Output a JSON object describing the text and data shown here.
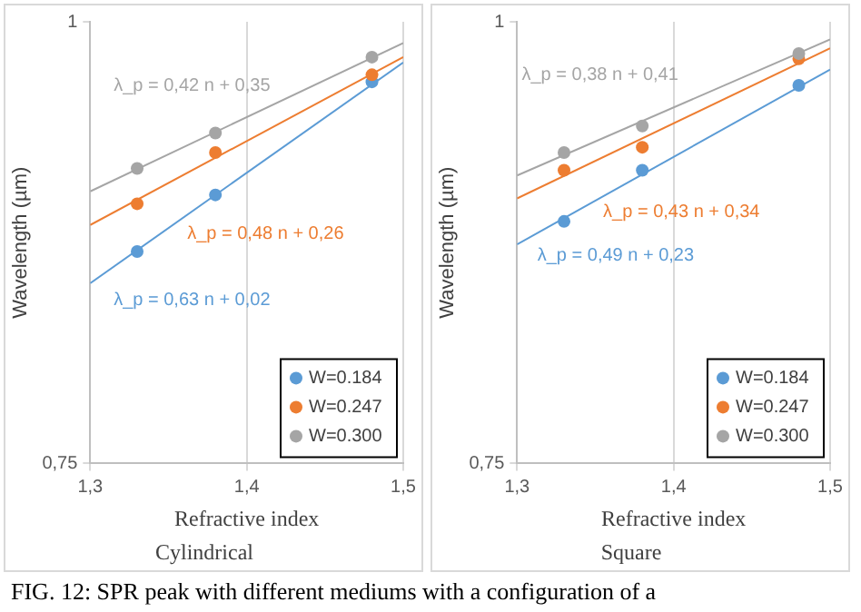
{
  "chart_data": [
    {
      "type": "scatter",
      "title": "Cylindrical",
      "xlabel": "Refractive index",
      "ylabel": "Wavelength (µm)",
      "xlim": [
        1.3,
        1.5
      ],
      "ylim": [
        0.75,
        1
      ],
      "xticks": [
        {
          "value": 1.3,
          "label": "1,3"
        },
        {
          "value": 1.4,
          "label": "1,4"
        },
        {
          "value": 1.5,
          "label": "1,5"
        }
      ],
      "yticks": [
        {
          "value": 0.75,
          "label": "0,75"
        },
        1
      ],
      "grid": "x",
      "legend": "bottom right",
      "marker": "circle",
      "series": [
        {
          "name": "W=0.184",
          "color": "#5b9bd5",
          "x": [
            1.33,
            1.38,
            1.48
          ],
          "values": [
            0.87,
            0.902,
            0.966
          ]
        },
        {
          "name": "W=0.247",
          "color": "#ed7d31",
          "x": [
            1.33,
            1.38,
            1.48
          ],
          "values": [
            0.897,
            0.926,
            0.97
          ]
        },
        {
          "name": "W=0.300",
          "color": "#a5a5a5",
          "x": [
            1.33,
            1.38,
            1.48
          ],
          "values": [
            0.917,
            0.937,
            0.98
          ]
        },
        {
          "type": "line",
          "color": "#5b9bd5",
          "marker": "none",
          "x": [
            1.3,
            1.5
          ],
          "values": [
            0.852,
            0.977
          ]
        },
        {
          "type": "line",
          "color": "#ed7d31",
          "marker": "none",
          "x": [
            1.3,
            1.5
          ],
          "values": [
            0.885,
            0.98
          ]
        },
        {
          "type": "line",
          "color": "#a5a5a5",
          "marker": "none",
          "x": [
            1.3,
            1.5
          ],
          "values": [
            0.904,
            0.988
          ]
        }
      ],
      "annotations": [
        "λ_p = 0,63 n + 0,02",
        "λ_p = 0,48 n + 0,26",
        "λ_p = 0,42 n + 0,35",
        "FIG. 12: SPR peak with different mediums with a configuration of a"
      ]
    },
    {
      "type": "scatter",
      "title": "Square",
      "xlabel": "Refractive index",
      "ylabel": "Wavelength (µm)",
      "xlim": [
        1.3,
        1.5
      ],
      "ylim": [
        0.75,
        1
      ],
      "xticks": [
        {
          "value": 1.3,
          "label": "1,3"
        },
        {
          "value": 1.4,
          "label": "1,4"
        },
        {
          "value": 1.5,
          "label": "1,5"
        }
      ],
      "yticks": [
        {
          "value": 0.75,
          "label": "0,75"
        },
        1
      ],
      "grid": "x",
      "legend": "bottom right",
      "marker": "circle",
      "series": [
        {
          "name": "W=0.184",
          "color": "#5b9bd5",
          "x": [
            1.33,
            1.38,
            1.48
          ],
          "values": [
            0.887,
            0.916,
            0.964
          ]
        },
        {
          "name": "W=0.247",
          "color": "#ed7d31",
          "x": [
            1.33,
            1.38,
            1.48
          ],
          "values": [
            0.916,
            0.929,
            0.979
          ]
        },
        {
          "name": "W=0.300",
          "color": "#a5a5a5",
          "x": [
            1.33,
            1.38,
            1.48
          ],
          "values": [
            0.926,
            0.941,
            0.982
          ]
        },
        {
          "type": "line",
          "color": "#5b9bd5",
          "marker": "none",
          "x": [
            1.3,
            1.5
          ],
          "values": [
            0.874,
            0.973
          ]
        },
        {
          "type": "line",
          "color": "#ed7d31",
          "marker": "none",
          "x": [
            1.3,
            1.5
          ],
          "values": [
            0.9,
            0.985
          ]
        },
        {
          "type": "line",
          "color": "#a5a5a5",
          "marker": "none",
          "x": [
            1.3,
            1.5
          ],
          "values": [
            0.913,
            0.99
          ]
        }
      ],
      "annotations": [
        "λ_p = 0,49 n + 0,23",
        "λ_p = 0,43 n + 0,34",
        "λ_p = 0,38 n + 0,41"
      ]
    }
  ]
}
